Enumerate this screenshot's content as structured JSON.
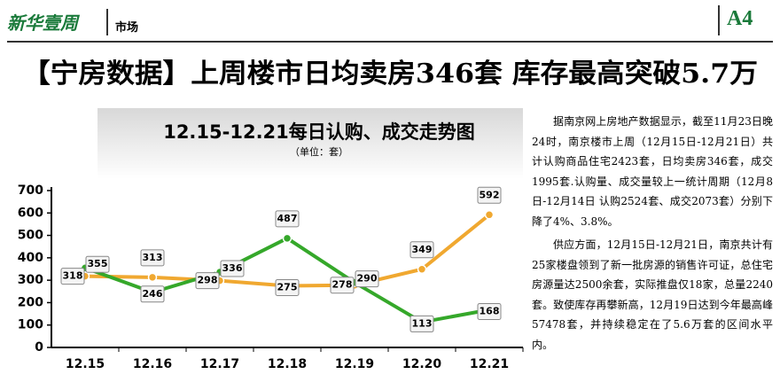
{
  "header": {
    "logo": "新华壹周",
    "section": "市场",
    "page": "A4"
  },
  "headline": "【宁房数据】上周楼市日均卖房346套 库存最高突破5.7万",
  "chart_data": {
    "type": "line",
    "title": "12.15-12.21每日认购、成交走势图",
    "subtitle": "（单位：套）",
    "categories": [
      "12.15",
      "12.16",
      "12.17",
      "12.18",
      "12.19",
      "12.20",
      "12.21"
    ],
    "series": [
      {
        "color": "#f0a830",
        "values": [
          318,
          313,
          298,
          275,
          278,
          349,
          592
        ]
      },
      {
        "color": "#35a82a",
        "values": [
          355,
          246,
          336,
          487,
          290,
          113,
          168
        ]
      }
    ],
    "ylim": [
      0,
      700
    ],
    "yticks": [
      0,
      100,
      200,
      300,
      400,
      500,
      600,
      700
    ],
    "grid": false
  },
  "article": {
    "paragraphs": [
      "据南京网上房地产数据显示，截至11月23日晚24时，南京楼市上周（12月15日-12月21日）共计认购商品住宅2423套，日均卖房346套，成交1995套.认购量、成交量较上一统计周期（12月8日-12月14日 认购2524套、成交2073套）分别下降了4%、3.8%。",
      "供应方面，12月15日-12月21日，南京共计有25家楼盘领到了新一批房源的销售许可证，总住宅房源量达2500余套，实际推盘仅18家，总量2240套。致使库存再攀新高，12月19日达到今年最高峰57478套，并持续稳定在了5.6万套的区间水平内。"
    ]
  }
}
